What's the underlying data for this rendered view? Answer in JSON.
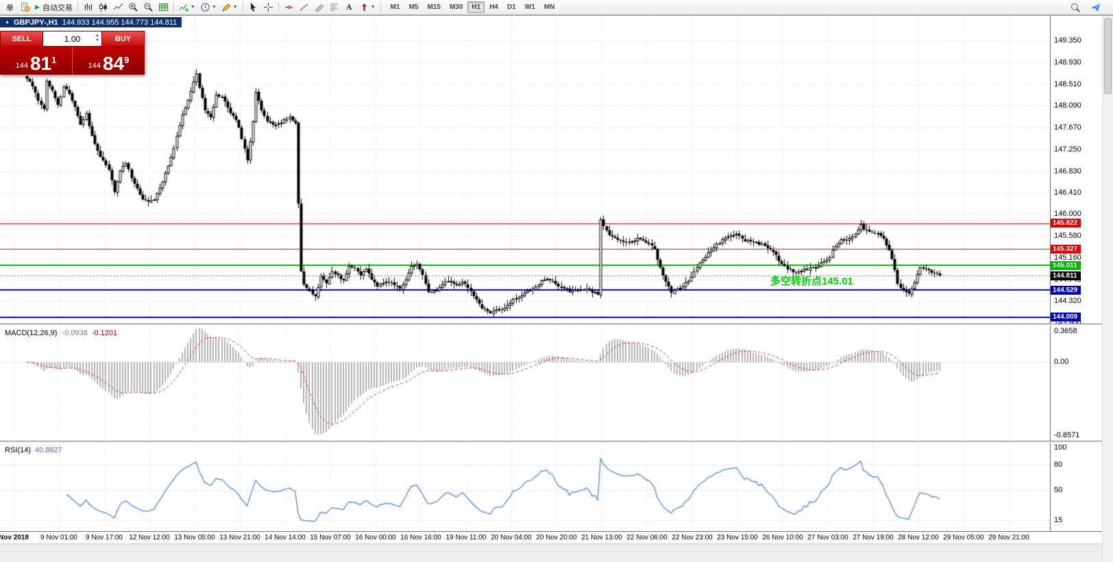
{
  "toolbar": {
    "menu_char": "单",
    "auto_trading_label": "自动交易",
    "timeframes": [
      "M1",
      "M5",
      "M15",
      "M30",
      "H1",
      "H4",
      "D1",
      "W1",
      "MN"
    ],
    "active_timeframe": "H1"
  },
  "chart_header": {
    "symbol": "GBPJPY-,H1",
    "ohlc": "144.933 144.955 144.773 144.811"
  },
  "trade_panel": {
    "sell_label": "SELL",
    "buy_label": "BUY",
    "volume": "1.00",
    "sell_price_small": "144",
    "sell_price_big": "81",
    "sell_price_sup": "1",
    "buy_price_small": "144",
    "buy_price_big": "84",
    "buy_price_sup": "9"
  },
  "annotation": {
    "text": "多空转折点145.01",
    "color": "#00d300"
  },
  "indicators": {
    "macd": {
      "label": "MACD(12,26,9)",
      "value1": "-0.0938",
      "value2": "-0.1201",
      "axis": [
        {
          "label": "0.3658",
          "value": 0.3658
        },
        {
          "label": "0.00",
          "value": 0
        },
        {
          "label": "-0.8571",
          "value": -0.8571
        }
      ]
    },
    "rsi": {
      "label": "RSI(14)",
      "value": "40.8827",
      "axis": [
        {
          "label": "100",
          "value": 100
        },
        {
          "label": "80",
          "value": 80
        },
        {
          "label": "50",
          "value": 50
        },
        {
          "label": "15",
          "value": 15
        }
      ],
      "levels": [
        80,
        50,
        15
      ]
    }
  },
  "colors": {
    "line_red": "#e60000",
    "line_green": "#00b400",
    "line_blue": "#0000bb",
    "current_tag": "#000000",
    "trade_panel_red": "#c00202",
    "header_navy": "#10316e",
    "rsi_line": "#3d7de0",
    "macd_histogram": "#b2b2b2",
    "macd_signal": "#e03030"
  },
  "chart_data": {
    "type": "candlestick",
    "symbol": "GBPJPY-",
    "timeframe": "H1",
    "current_price": 144.811,
    "price_axis": {
      "min": 143.9,
      "max": 149.35,
      "ticks": [
        "149.350",
        "148.930",
        "148.510",
        "148.090",
        "147.670",
        "147.250",
        "146.830",
        "146.410",
        "146.000",
        "145.580",
        "145.160",
        "144.740",
        "144.320",
        "143.900"
      ]
    },
    "time_axis": {
      "labels": [
        "Nov 2018",
        "9 Nov 01:00",
        "9 Nov 17:00",
        "12 Nov 12:00",
        "13 Nov 05:00",
        "13 Nov 21:00",
        "14 Nov 14:00",
        "15 Nov 07:00",
        "16 Nov 00:00",
        "16 Nov 16:00",
        "19 Nov 11:00",
        "20 Nov 04:00",
        "20 Nov 20:00",
        "21 Nov 13:00",
        "22 Nov 06:00",
        "22 Nov 23:00",
        "23 Nov 15:00",
        "26 Nov 10:00",
        "27 Nov 03:00",
        "27 Nov 19:00",
        "28 Nov 12:00",
        "29 Nov 05:00",
        "29 Nov 21:00"
      ]
    },
    "lines": [
      {
        "label": "145.822",
        "value": 145.822,
        "color": "#e60000",
        "width": 1
      },
      {
        "label": "145.327",
        "value": 145.327,
        "color": "#e60000",
        "width": 1
      },
      {
        "label": "145.011",
        "value": 145.011,
        "color": "#00b400",
        "width": 2
      },
      {
        "label": "144.529",
        "value": 144.529,
        "color": "#0000bb",
        "width": 2
      },
      {
        "label": "144.009",
        "value": 144.009,
        "color": "#0000bb",
        "width": 2
      }
    ],
    "current_price_tag": {
      "label": "144.811",
      "value": 144.811,
      "color": "#000000"
    },
    "seed": 12,
    "anchors": [
      [
        7,
        148.62
      ],
      [
        9,
        148.45
      ],
      [
        11,
        148.2
      ],
      [
        13,
        148.0
      ],
      [
        14,
        148.55
      ],
      [
        16,
        148.4
      ],
      [
        18,
        148.1
      ],
      [
        20,
        148.45
      ],
      [
        22,
        148.35
      ],
      [
        24,
        148.05
      ],
      [
        26,
        147.75
      ],
      [
        28,
        147.95
      ],
      [
        30,
        147.5
      ],
      [
        32,
        147.2
      ],
      [
        34,
        147.05
      ],
      [
        36,
        146.85
      ],
      [
        38,
        146.4
      ],
      [
        40,
        146.85
      ],
      [
        42,
        147.0
      ],
      [
        44,
        146.7
      ],
      [
        46,
        146.5
      ],
      [
        48,
        146.28
      ],
      [
        50,
        146.25
      ],
      [
        52,
        146.3
      ],
      [
        54,
        146.5
      ],
      [
        56,
        146.8
      ],
      [
        58,
        147.1
      ],
      [
        60,
        147.5
      ],
      [
        62,
        147.9
      ],
      [
        64,
        148.2
      ],
      [
        66,
        148.55
      ],
      [
        67,
        148.72
      ],
      [
        68,
        148.45
      ],
      [
        70,
        148.0
      ],
      [
        72,
        147.85
      ],
      [
        74,
        148.3
      ],
      [
        76,
        148.25
      ],
      [
        78,
        148.05
      ],
      [
        80,
        147.9
      ],
      [
        82,
        147.68
      ],
      [
        84,
        147.25
      ],
      [
        85,
        147.05
      ],
      [
        87,
        147.8
      ],
      [
        88,
        148.35
      ],
      [
        90,
        148.0
      ],
      [
        92,
        147.8
      ],
      [
        94,
        147.7
      ],
      [
        96,
        147.72
      ],
      [
        98,
        147.8
      ],
      [
        100,
        147.88
      ],
      [
        102,
        147.78
      ],
      [
        103,
        146.2
      ],
      [
        104,
        144.9
      ],
      [
        105,
        144.62
      ],
      [
        107,
        144.5
      ],
      [
        109,
        144.42
      ],
      [
        111,
        144.8
      ],
      [
        113,
        144.68
      ],
      [
        115,
        144.9
      ],
      [
        117,
        144.8
      ],
      [
        119,
        144.7
      ],
      [
        121,
        145.0
      ],
      [
        123,
        144.95
      ],
      [
        125,
        144.82
      ],
      [
        127,
        144.95
      ],
      [
        129,
        144.75
      ],
      [
        131,
        144.62
      ],
      [
        133,
        144.68
      ],
      [
        135,
        144.7
      ],
      [
        137,
        144.62
      ],
      [
        139,
        144.58
      ],
      [
        141,
        144.75
      ],
      [
        143,
        145.0
      ],
      [
        145,
        145.02
      ],
      [
        147,
        144.85
      ],
      [
        149,
        144.48
      ],
      [
        151,
        144.5
      ],
      [
        153,
        144.58
      ],
      [
        155,
        144.68
      ],
      [
        157,
        144.7
      ],
      [
        159,
        144.62
      ],
      [
        161,
        144.68
      ],
      [
        163,
        144.6
      ],
      [
        165,
        144.42
      ],
      [
        167,
        144.25
      ],
      [
        169,
        144.15
      ],
      [
        171,
        144.1
      ],
      [
        173,
        144.18
      ],
      [
        175,
        144.15
      ],
      [
        177,
        144.22
      ],
      [
        179,
        144.35
      ],
      [
        181,
        144.42
      ],
      [
        183,
        144.48
      ],
      [
        185,
        144.52
      ],
      [
        187,
        144.6
      ],
      [
        189,
        144.72
      ],
      [
        191,
        144.76
      ],
      [
        193,
        144.7
      ],
      [
        195,
        144.62
      ],
      [
        197,
        144.58
      ],
      [
        199,
        144.5
      ],
      [
        201,
        144.52
      ],
      [
        203,
        144.56
      ],
      [
        205,
        144.55
      ],
      [
        207,
        144.5
      ],
      [
        209,
        144.45
      ],
      [
        210,
        145.88
      ],
      [
        211,
        145.75
      ],
      [
        213,
        145.58
      ],
      [
        215,
        145.52
      ],
      [
        217,
        145.5
      ],
      [
        219,
        145.45
      ],
      [
        221,
        145.48
      ],
      [
        223,
        145.52
      ],
      [
        225,
        145.5
      ],
      [
        227,
        145.45
      ],
      [
        229,
        145.32
      ],
      [
        231,
        144.95
      ],
      [
        233,
        144.7
      ],
      [
        235,
        144.48
      ],
      [
        237,
        144.55
      ],
      [
        239,
        144.62
      ],
      [
        241,
        144.72
      ],
      [
        243,
        144.88
      ],
      [
        245,
        145.05
      ],
      [
        247,
        145.18
      ],
      [
        249,
        145.3
      ],
      [
        251,
        145.42
      ],
      [
        253,
        145.5
      ],
      [
        255,
        145.55
      ],
      [
        257,
        145.6
      ],
      [
        259,
        145.58
      ],
      [
        261,
        145.5
      ],
      [
        263,
        145.46
      ],
      [
        265,
        145.44
      ],
      [
        267,
        145.42
      ],
      [
        269,
        145.35
      ],
      [
        271,
        145.28
      ],
      [
        273,
        145.1
      ],
      [
        275,
        144.98
      ],
      [
        277,
        144.92
      ],
      [
        279,
        144.88
      ],
      [
        281,
        144.9
      ],
      [
        283,
        144.94
      ],
      [
        285,
        144.96
      ],
      [
        287,
        145.0
      ],
      [
        289,
        145.08
      ],
      [
        291,
        145.18
      ],
      [
        293,
        145.38
      ],
      [
        295,
        145.52
      ],
      [
        297,
        145.48
      ],
      [
        299,
        145.55
      ],
      [
        301,
        145.72
      ],
      [
        302,
        145.8
      ],
      [
        303,
        145.72
      ],
      [
        305,
        145.68
      ],
      [
        307,
        145.64
      ],
      [
        309,
        145.6
      ],
      [
        311,
        145.42
      ],
      [
        313,
        145.15
      ],
      [
        315,
        144.68
      ],
      [
        317,
        144.52
      ],
      [
        319,
        144.48
      ],
      [
        321,
        144.66
      ],
      [
        323,
        144.98
      ],
      [
        325,
        144.92
      ],
      [
        327,
        144.88
      ],
      [
        329,
        144.84
      ],
      [
        330,
        144.81
      ]
    ]
  }
}
